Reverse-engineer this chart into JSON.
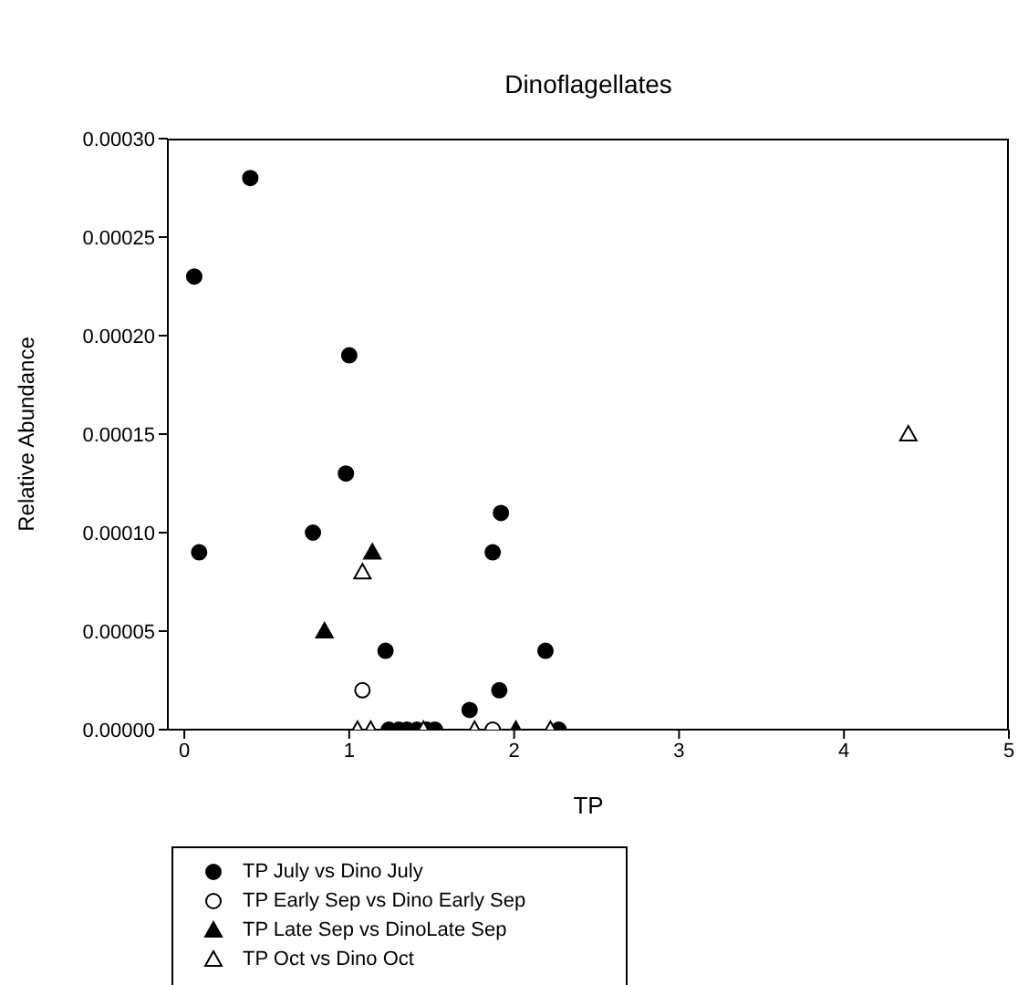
{
  "chart_data": {
    "type": "scatter",
    "title": "Dinoflagellates",
    "xlabel": "TP",
    "ylabel": "Relative Abundance",
    "xlim": [
      -0.1,
      5
    ],
    "xticks": [
      0,
      1,
      2,
      3,
      4,
      5
    ],
    "ylim": [
      0,
      0.0003
    ],
    "yticks": [
      {
        "value": 0,
        "label": "0.00000"
      },
      {
        "value": 5e-05,
        "label": "0.00005"
      },
      {
        "value": 0.0001,
        "label": "0.00010"
      },
      {
        "value": 0.00015,
        "label": "0.00015"
      },
      {
        "value": 0.0002,
        "label": "0.00020"
      },
      {
        "value": 0.00025,
        "label": "0.00025"
      },
      {
        "value": 0.0003,
        "label": "0.00030"
      }
    ],
    "grid": false,
    "legend": "bottom",
    "series": [
      {
        "name": "TP July vs Dino July",
        "color": "#000000",
        "marker": "circle",
        "x": [
          0.06,
          0.4,
          0.09,
          1.0,
          0.98,
          0.78,
          1.22,
          1.92,
          1.87,
          2.19,
          1.91,
          1.73,
          1.24,
          1.3,
          1.35,
          1.41,
          1.47,
          1.52,
          2.27
        ],
        "values": [
          0.00023,
          0.00028,
          9e-05,
          0.00019,
          0.00013,
          0.0001,
          4e-05,
          0.00011,
          9e-05,
          4e-05,
          2e-05,
          1e-05,
          0,
          0,
          0,
          0,
          0,
          0,
          0
        ]
      },
      {
        "name": "TP Early Sep vs Dino Early Sep",
        "color": "#ffffff",
        "marker": "circle",
        "x": [
          1.08,
          1.87
        ],
        "values": [
          2e-05,
          0
        ]
      },
      {
        "name": "TP Late Sep vs DinoLate Sep",
        "color": "#000000",
        "marker": "triangle",
        "x": [
          1.14,
          0.85,
          2.01
        ],
        "values": [
          9e-05,
          5e-05,
          0
        ]
      },
      {
        "name": "TP Oct vs Dino Oct",
        "color": "#ffffff",
        "marker": "triangle",
        "x": [
          1.08,
          1.05,
          1.13,
          1.45,
          1.76,
          2.22,
          4.39
        ],
        "values": [
          8e-05,
          0,
          0,
          0,
          0,
          0,
          0.00015
        ]
      }
    ]
  }
}
